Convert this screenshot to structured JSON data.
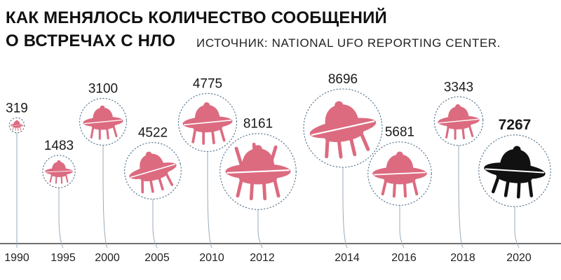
{
  "header": {
    "title_line1": "КАК МЕНЯЛОСЬ КОЛИЧЕСТВО СООБЩЕНИЙ",
    "title_line2": "О ВСТРЕЧАХ С НЛО",
    "source": "ИСТОЧНИК: NATIONAL UFO REPORTING CENTER."
  },
  "colors": {
    "ufo": "#dc6b80",
    "ufo_highlight": "#111111",
    "ring": "#4f6f8a",
    "connector": "#9aaab8",
    "axis": "#1a1a1a"
  },
  "chart_data": {
    "type": "bubble",
    "title": "КАК МЕНЯЛОСЬ КОЛИЧЕСТВО СООБЩЕНИЙ О ВСТРЕЧАХ С НЛО",
    "categories": [
      "1990",
      "1995",
      "2000",
      "2005",
      "2010",
      "2012",
      "2014",
      "2016",
      "2018",
      "2020"
    ],
    "values": [
      319,
      1483,
      3100,
      4522,
      4775,
      8161,
      8696,
      5681,
      3343,
      7267
    ],
    "highlight": "2020",
    "icon": "ufo-icon"
  }
}
